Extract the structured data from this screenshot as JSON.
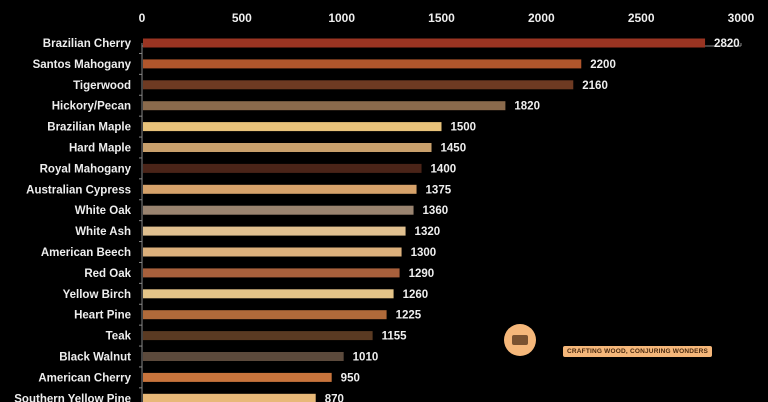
{
  "chart_data": {
    "type": "bar",
    "orientation": "horizontal",
    "categories": [
      "Brazilian Cherry",
      "Santos Mahogany",
      "Tigerwood",
      "Hickory/Pecan",
      "Brazilian Maple",
      "Hard Maple",
      "Royal Mahogany",
      "Australian Cypress",
      "White Oak",
      "White Ash",
      "American Beech",
      "Red Oak",
      "Yellow Birch",
      "Heart Pine",
      "Teak",
      "Black Walnut",
      "American Cherry",
      "Southern Yellow Pine"
    ],
    "values": [
      2820,
      2200,
      2160,
      1820,
      1500,
      1450,
      1400,
      1375,
      1360,
      1320,
      1300,
      1290,
      1260,
      1225,
      1155,
      1010,
      950,
      870
    ],
    "colors": [
      "#9a3422",
      "#b0562c",
      "#6e3a22",
      "#8a6a4c",
      "#e8c27a",
      "#c9a06c",
      "#4a2418",
      "#d6a26a",
      "#9a8470",
      "#e0c090",
      "#dcb07c",
      "#a8603c",
      "#e4c488",
      "#b06a3a",
      "#5a3a22",
      "#5c4a3c",
      "#c8743c",
      "#e8b878"
    ],
    "xlim": [
      0,
      3000
    ],
    "xticks": [
      0,
      500,
      1000,
      1500,
      2000,
      2500,
      3000
    ],
    "axis_position": "top",
    "grid": false,
    "background": "#000000"
  },
  "watermark": {
    "tagline": "CRAFTING WOOD, CONJURING WONDERS"
  }
}
